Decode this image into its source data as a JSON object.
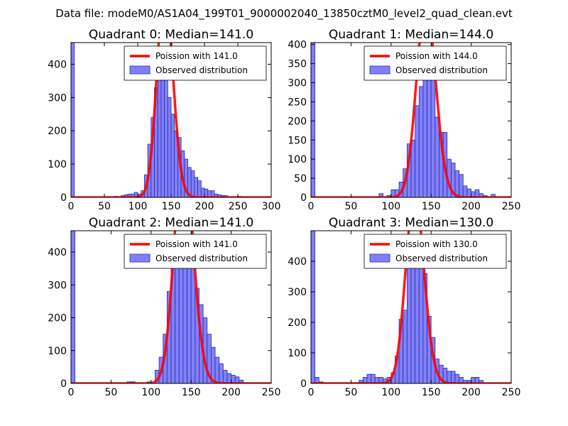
{
  "figure": {
    "suptitle": "Data file: modeM0/AS1A04_199T01_9000002040_13850cztM0_level2_quad_clean.evt"
  },
  "colors": {
    "bar_fill": "#8080ff",
    "bar_edge": "#2c2c9a",
    "poisson_line": "#ff0000"
  },
  "chart_data": [
    {
      "type": "bar",
      "title": "Quadrant 0: Median=141.0",
      "xlim": [
        0,
        300
      ],
      "ylim": [
        0,
        465
      ],
      "xticks": [
        0,
        50,
        100,
        150,
        200,
        250,
        300
      ],
      "yticks": [
        0,
        100,
        200,
        300,
        400
      ],
      "bin_width": 5,
      "median": 141.0,
      "legend": [
        "Poission with 141.0",
        "Observed distribution"
      ],
      "bins": [
        [
          0,
          465
        ],
        [
          65,
          3
        ],
        [
          75,
          5
        ],
        [
          80,
          8
        ],
        [
          85,
          10
        ],
        [
          90,
          10
        ],
        [
          95,
          15
        ],
        [
          100,
          10
        ],
        [
          105,
          20
        ],
        [
          110,
          68
        ],
        [
          115,
          160
        ],
        [
          120,
          240
        ],
        [
          125,
          330
        ],
        [
          130,
          400
        ],
        [
          135,
          440
        ],
        [
          140,
          420
        ],
        [
          145,
          300
        ],
        [
          150,
          250
        ],
        [
          155,
          200
        ],
        [
          160,
          180
        ],
        [
          165,
          140
        ],
        [
          170,
          115
        ],
        [
          175,
          90
        ],
        [
          180,
          80
        ],
        [
          185,
          60
        ],
        [
          190,
          50
        ],
        [
          195,
          28
        ],
        [
          200,
          25
        ],
        [
          205,
          20
        ],
        [
          210,
          20
        ],
        [
          215,
          10
        ],
        [
          220,
          8
        ],
        [
          225,
          6
        ],
        [
          230,
          5
        ],
        [
          250,
          3
        ]
      ]
    },
    {
      "type": "bar",
      "title": "Quadrant 1: Median=144.0",
      "xlim": [
        0,
        250
      ],
      "ylim": [
        0,
        405
      ],
      "xticks": [
        0,
        50,
        100,
        150,
        200,
        250
      ],
      "yticks": [
        0,
        50,
        100,
        150,
        200,
        250,
        300,
        350,
        400
      ],
      "bin_width": 5,
      "median": 144.0,
      "legend": [
        "Poission with 144.0",
        "Observed distribution"
      ],
      "bins": [
        [
          0,
          405
        ],
        [
          85,
          10
        ],
        [
          95,
          5
        ],
        [
          100,
          20
        ],
        [
          105,
          20
        ],
        [
          110,
          40
        ],
        [
          115,
          75
        ],
        [
          120,
          140
        ],
        [
          125,
          150
        ],
        [
          130,
          240
        ],
        [
          135,
          290
        ],
        [
          140,
          370
        ],
        [
          145,
          390
        ],
        [
          150,
          320
        ],
        [
          155,
          210
        ],
        [
          160,
          170
        ],
        [
          165,
          170
        ],
        [
          170,
          100
        ],
        [
          175,
          90
        ],
        [
          180,
          70
        ],
        [
          185,
          60
        ],
        [
          190,
          30
        ],
        [
          195,
          22
        ],
        [
          200,
          15
        ],
        [
          205,
          20
        ],
        [
          210,
          10
        ],
        [
          215,
          5
        ],
        [
          225,
          8
        ]
      ]
    },
    {
      "type": "bar",
      "title": "Quadrant 2: Median=141.0",
      "xlim": [
        0,
        250
      ],
      "ylim": [
        0,
        465
      ],
      "xticks": [
        0,
        50,
        100,
        150,
        200,
        250
      ],
      "yticks": [
        0,
        100,
        200,
        300,
        400
      ],
      "bin_width": 5,
      "median": 141.0,
      "legend": [
        "Poission with 141.0",
        "Observed distribution"
      ],
      "bins": [
        [
          0,
          465
        ],
        [
          70,
          5
        ],
        [
          75,
          5
        ],
        [
          95,
          5
        ],
        [
          105,
          40
        ],
        [
          110,
          80
        ],
        [
          115,
          150
        ],
        [
          120,
          280
        ],
        [
          125,
          370
        ],
        [
          130,
          390
        ],
        [
          135,
          410
        ],
        [
          140,
          430
        ],
        [
          145,
          390
        ],
        [
          150,
          380
        ],
        [
          155,
          290
        ],
        [
          160,
          240
        ],
        [
          165,
          200
        ],
        [
          170,
          150
        ],
        [
          175,
          110
        ],
        [
          180,
          80
        ],
        [
          185,
          60
        ],
        [
          190,
          40
        ],
        [
          195,
          30
        ],
        [
          200,
          25
        ],
        [
          205,
          20
        ],
        [
          210,
          10
        ]
      ]
    },
    {
      "type": "bar",
      "title": "Quadrant 3: Median=130.0",
      "xlim": [
        0,
        250
      ],
      "ylim": [
        0,
        500
      ],
      "xticks": [
        0,
        50,
        100,
        150,
        200,
        250
      ],
      "yticks": [
        0,
        100,
        200,
        300,
        400
      ],
      "bin_width": 5,
      "median": 130.0,
      "legend": [
        "Poission with 130.0",
        "Observed distribution"
      ],
      "bins": [
        [
          0,
          500
        ],
        [
          5,
          20
        ],
        [
          10,
          5
        ],
        [
          60,
          10
        ],
        [
          65,
          20
        ],
        [
          70,
          30
        ],
        [
          75,
          30
        ],
        [
          80,
          20
        ],
        [
          85,
          20
        ],
        [
          90,
          15
        ],
        [
          95,
          20
        ],
        [
          100,
          35
        ],
        [
          105,
          90
        ],
        [
          110,
          210
        ],
        [
          115,
          240
        ],
        [
          120,
          380
        ],
        [
          125,
          400
        ],
        [
          130,
          480
        ],
        [
          135,
          410
        ],
        [
          140,
          360
        ],
        [
          145,
          220
        ],
        [
          150,
          150
        ],
        [
          155,
          80
        ],
        [
          160,
          60
        ],
        [
          165,
          50
        ],
        [
          170,
          40
        ],
        [
          175,
          40
        ],
        [
          180,
          30
        ],
        [
          185,
          20
        ],
        [
          190,
          10
        ],
        [
          195,
          10
        ],
        [
          200,
          20
        ],
        [
          205,
          20
        ],
        [
          210,
          10
        ]
      ]
    }
  ]
}
